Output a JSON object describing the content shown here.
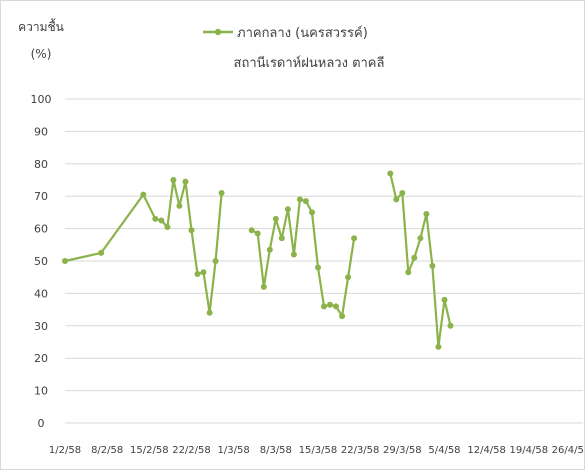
{
  "chart_data": {
    "type": "line",
    "title": "ภาคกลาง (นครสวรรค์)",
    "subtitle": "สถานีเรดาห์ฝนหลวง ตาคลี",
    "ylabel_line1": "ความชื้น",
    "ylabel_line2": "(%)",
    "ylim": [
      0,
      100
    ],
    "yticks": [
      0,
      10,
      20,
      30,
      40,
      50,
      60,
      70,
      80,
      90,
      100
    ],
    "xticks": [
      "1/2/58",
      "8/2/58",
      "15/2/58",
      "22/2/58",
      "1/3/58",
      "8/3/58",
      "15/3/58",
      "22/3/58",
      "29/3/58",
      "5/4/58",
      "12/4/58",
      "19/4/58",
      "26/4/58"
    ],
    "xlim": [
      "2015-02-01",
      "2015-04-28"
    ],
    "grid": "horizontal",
    "legend": "top-center",
    "color": "#8cb34b",
    "series": [
      {
        "name": "ภาคกลาง (นครสวรรค์)",
        "points": [
          [
            "2015-02-01",
            50
          ],
          [
            "2015-02-07",
            52.5
          ],
          [
            "2015-02-14",
            70.5
          ],
          [
            "2015-02-16",
            63
          ],
          [
            "2015-02-17",
            62.5
          ],
          [
            "2015-02-18",
            60.5
          ],
          [
            "2015-02-19",
            75
          ],
          [
            "2015-02-20",
            67
          ],
          [
            "2015-02-21",
            74.5
          ],
          [
            "2015-02-22",
            59.5
          ],
          [
            "2015-02-23",
            46
          ],
          [
            "2015-02-24",
            46.5
          ],
          [
            "2015-02-25",
            34
          ],
          [
            "2015-02-26",
            50
          ],
          [
            "2015-02-27",
            71
          ],
          null,
          [
            "2015-03-04",
            59.5
          ],
          [
            "2015-03-05",
            58.5
          ],
          [
            "2015-03-06",
            42
          ],
          [
            "2015-03-07",
            53.5
          ],
          [
            "2015-03-08",
            63
          ],
          [
            "2015-03-09",
            57
          ],
          [
            "2015-03-10",
            66
          ],
          [
            "2015-03-11",
            52
          ],
          [
            "2015-03-12",
            69
          ],
          [
            "2015-03-13",
            68.5
          ],
          [
            "2015-03-14",
            65
          ],
          [
            "2015-03-15",
            48
          ],
          [
            "2015-03-16",
            36
          ],
          [
            "2015-03-17",
            36.5
          ],
          [
            "2015-03-18",
            36
          ],
          [
            "2015-03-19",
            33
          ],
          [
            "2015-03-20",
            45
          ],
          [
            "2015-03-21",
            57
          ],
          null,
          [
            "2015-03-27",
            77
          ],
          [
            "2015-03-28",
            69
          ],
          [
            "2015-03-29",
            71
          ],
          [
            "2015-03-30",
            46.5
          ],
          [
            "2015-03-31",
            51
          ],
          [
            "2015-04-01",
            57
          ],
          [
            "2015-04-02",
            64.5
          ],
          [
            "2015-04-03",
            48.5
          ],
          [
            "2015-04-04",
            23.5
          ],
          [
            "2015-04-05",
            38
          ],
          [
            "2015-04-06",
            30
          ]
        ]
      }
    ]
  }
}
